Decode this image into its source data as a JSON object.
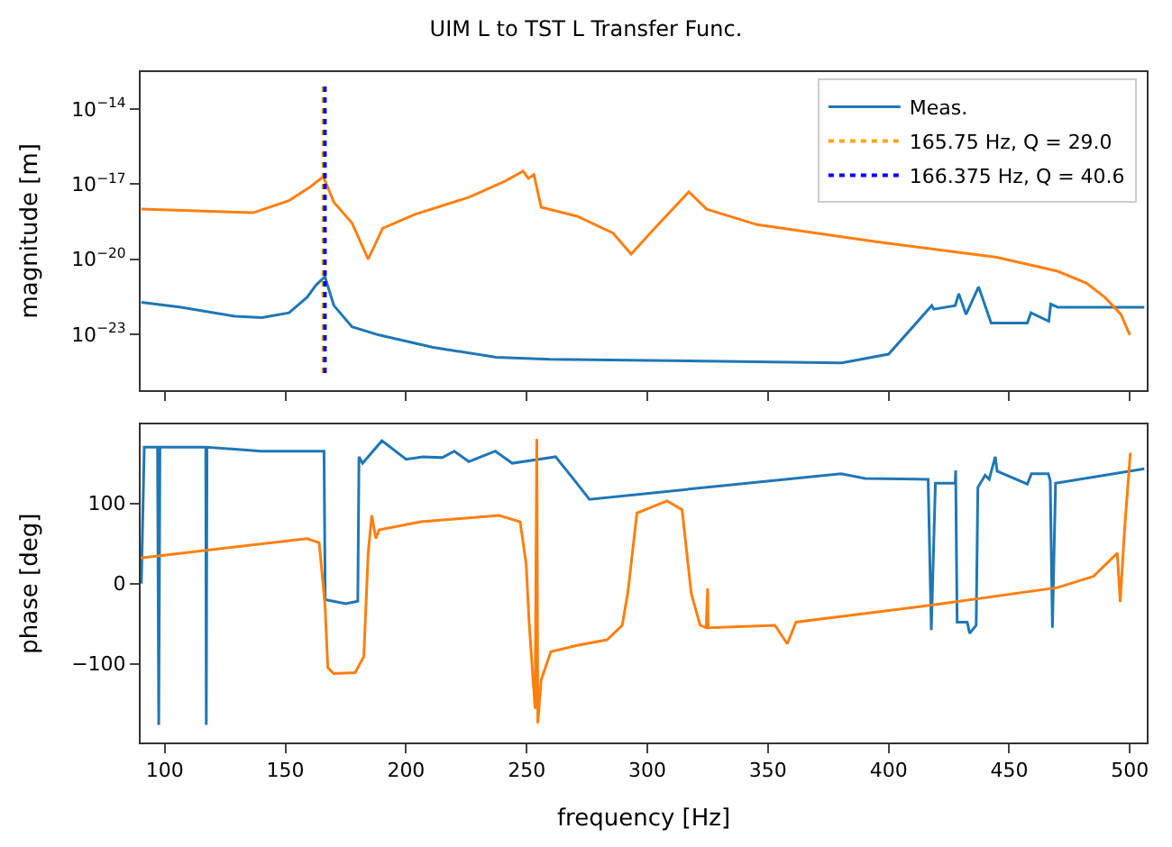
{
  "chart_data": [
    {
      "type": "line",
      "title": "UIM L to TST L Transfer Func.",
      "ylabel": "magnitude [m]",
      "log": true,
      "legend": "top right",
      "tick_labels": "y",
      "xlim": [
        90,
        507
      ],
      "xticks": [
        100,
        150,
        200,
        250,
        300,
        350,
        400,
        450,
        500
      ],
      "ylim": [
        6e-26,
        3e-13
      ],
      "yticks": [
        {
          "value": 1e-14,
          "label": "10$^{−14}$"
        },
        {
          "value": 1e-17,
          "label": "10$^{−17}$"
        },
        {
          "value": 1e-20,
          "label": "10$^{−20}$"
        },
        {
          "value": 1e-23,
          "label": "10$^{−23}$"
        }
      ],
      "series": [
        {
          "name": "Meas.",
          "color": "#1f77b4",
          "x": [
            90.3,
            106.7,
            129.1,
            140.3,
            151.5,
            159.0,
            162.7,
            166.4,
            167.2,
            170.1,
            177.6,
            188.8,
            211.2,
            237.3,
            259.7,
            380.6,
            400,
            417.9,
            418.7,
            427.6,
            429.1,
            432.1,
            437.3,
            442.5,
            457.5,
            459.0,
            466.4,
            467.2,
            470.1,
            506
          ],
          "values": [
            1.9e-22,
            1.2e-22,
            5.2e-23,
            4.6e-23,
            7.2e-23,
            3e-22,
            9.3e-22,
            2e-21,
            1.1e-21,
            1.4e-22,
            2e-23,
            9.3e-24,
            3e-24,
            1.2e-24,
            1e-24,
            7.2e-25,
            1.6e-24,
            1.4e-22,
            1e-22,
            1.4e-22,
            4.2e-22,
            6.2e-23,
            7.9e-22,
            2.8e-23,
            2.8e-23,
            7.2e-23,
            3.3e-23,
            1.6e-22,
            1.2e-22,
            1.2e-22
          ]
        },
        {
          "color": "#ff7f0e",
          "x": [
            90.3,
            136.6,
            151.5,
            160.4,
            165.7,
            170.1,
            177.6,
            184.3,
            190.3,
            203.7,
            226.1,
            241.0,
            248.5,
            250.7,
            253,
            256,
            270.9,
            285.8,
            293.3,
            303,
            317.2,
            324.6,
            345.5,
            395.5,
            444.8,
            470.1,
            482.1,
            489.6,
            496.3,
            500
          ],
          "values": [
            1e-18,
            7.2e-19,
            2.2e-18,
            7.9e-18,
            2e-17,
            1.9e-18,
            2.8e-19,
            1e-20,
            1.7e-19,
            6.2e-19,
            3e-18,
            1.3e-17,
            3.3e-17,
            1.7e-17,
            2.4e-17,
            1.2e-18,
            5.2e-19,
            1.1e-19,
            1.6e-20,
            1.7e-19,
            4.9e-18,
            1e-18,
            2.4e-19,
            4.9e-20,
            1.2e-20,
            3.3e-21,
            1.1e-21,
            3e-22,
            6.2e-23,
            9.3e-24
          ]
        },
        {
          "name": "165.75 Hz, Q = 29.0",
          "color": "#ffa500",
          "line_style": "dotted",
          "x": [
            165.75,
            165.75
          ],
          "values": [
            8e-14,
            2.5e-25
          ]
        },
        {
          "name": "166.375 Hz, Q = 40.6",
          "color": "#0000ff",
          "line_style": "dotted",
          "x": [
            166.375,
            166.375
          ],
          "values": [
            8e-14,
            2.5e-25
          ]
        }
      ]
    },
    {
      "type": "line",
      "xlabel": "frequency [Hz]",
      "ylabel": "phase [deg]",
      "xlim": [
        90,
        507
      ],
      "xticks": [
        100,
        150,
        200,
        250,
        300,
        350,
        400,
        450,
        500
      ],
      "ylim": [
        -198,
        198
      ],
      "yticks": [
        {
          "value": -100,
          "label": "−100"
        },
        0,
        100
      ],
      "series": [
        {
          "color": "#1f77b4",
          "x": [
            90.3,
            91.5,
            97,
            97.5,
            98,
            117,
            117.2,
            117.5,
            140,
            166,
            166.5,
            175,
            180,
            180.5,
            182,
            190,
            200,
            207,
            215,
            220,
            226,
            237,
            244,
            262,
            270,
            276,
            380.3,
            390.3,
            416.4,
            417.7,
            419.4,
            427.6,
            427.8,
            428.4,
            432.6,
            433.6,
            436.3,
            437,
            440,
            441.7,
            444.2,
            445,
            457.5,
            459.2,
            466.2,
            467,
            467.9,
            469.2,
            506
          ],
          "values": [
            0,
            170,
            170,
            -176,
            170,
            170,
            -176,
            170,
            165,
            165,
            -20,
            -25,
            -22,
            158,
            150,
            178,
            155,
            158,
            157,
            165,
            152,
            165,
            150,
            158,
            128,
            105,
            137,
            131,
            130,
            -58,
            125,
            125,
            141,
            -48,
            -48,
            -62,
            -52,
            120,
            135,
            130,
            158,
            140,
            124,
            137,
            137,
            128,
            -55,
            125,
            143
          ]
        },
        {
          "color": "#ff7f0e",
          "x": [
            90,
            159,
            164,
            166.4,
            167.6,
            170,
            178.9,
            182.5,
            184.3,
            185.8,
            187.5,
            188.8,
            206.2,
            238.6,
            247.3,
            249.8,
            251,
            253.5,
            254.2,
            254.6,
            256,
            260,
            270.9,
            283.3,
            289.6,
            291.9,
            295.7,
            308.2,
            314.4,
            318.2,
            321.9,
            324.4,
            325,
            325.2,
            352.9,
            358,
            361.6,
            420,
            469.9,
            484.9,
            494.8,
            496,
            497.8,
            500.2
          ],
          "values": [
            32,
            56,
            51,
            -26,
            -105,
            -112,
            -111,
            -91,
            38,
            85,
            56,
            67,
            77,
            85,
            77,
            24,
            -48,
            -156,
            180,
            -174,
            -120,
            -85,
            -77,
            -70,
            -52,
            -12,
            88,
            103,
            92,
            -12,
            -52,
            -55,
            -6,
            -55,
            -52,
            -75,
            -48,
            -26,
            -5,
            9,
            38,
            -23,
            67,
            163
          ]
        }
      ]
    }
  ]
}
